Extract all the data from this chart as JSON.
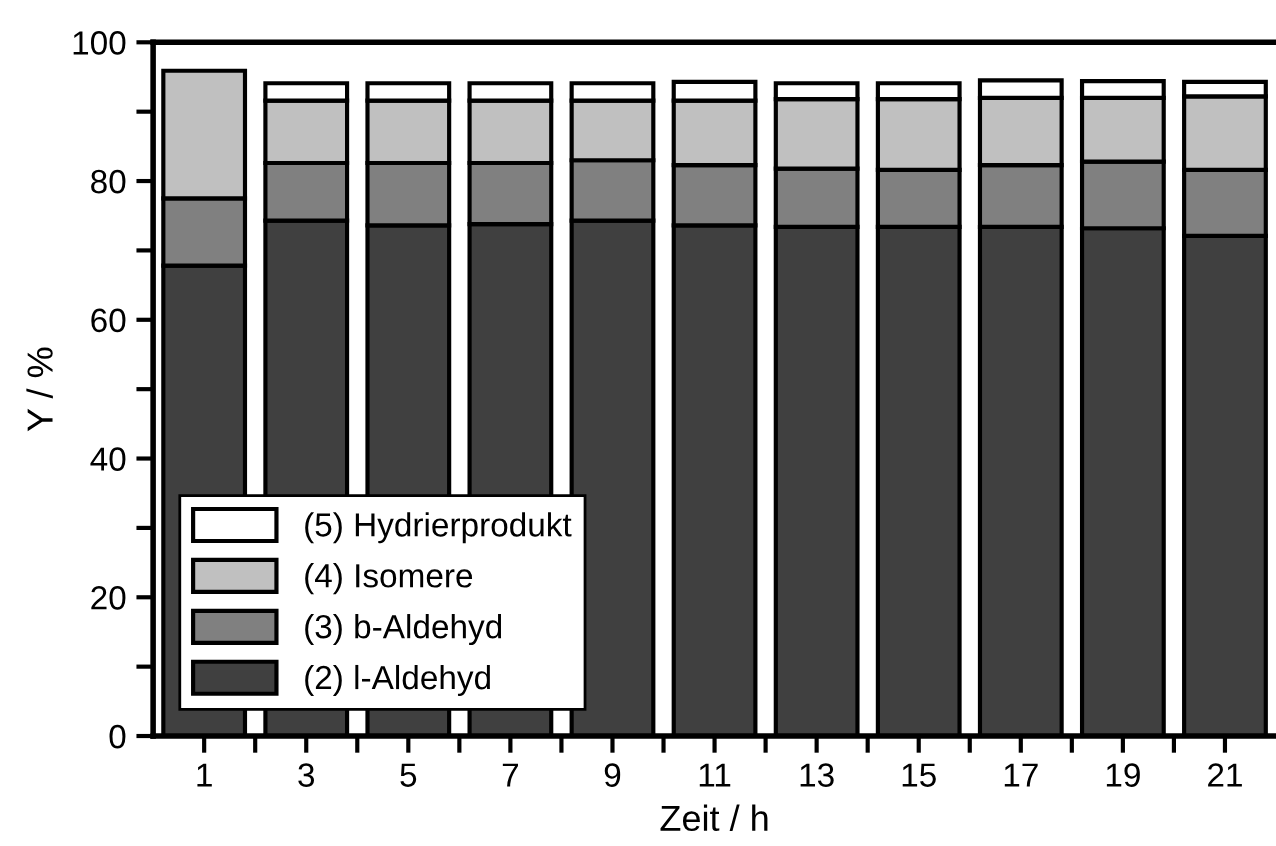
{
  "chart_data": {
    "type": "bar",
    "stacked": true,
    "xlabel": "Zeit / h",
    "ylabel": "Y / %",
    "x": [
      1,
      3,
      5,
      7,
      9,
      11,
      13,
      15,
      17,
      19,
      21
    ],
    "series": [
      {
        "name": "(2) l-Aldehyd",
        "color": "#404040",
        "values": [
          67.8,
          74.3,
          73.6,
          73.8,
          74.3,
          73.6,
          73.4,
          73.4,
          73.4,
          73.2,
          72.1
        ]
      },
      {
        "name": "(3) b-Aldehyd",
        "color": "#808080",
        "values": [
          9.7,
          8.3,
          9.0,
          8.8,
          8.7,
          8.7,
          8.4,
          8.2,
          8.9,
          9.6,
          9.5
        ]
      },
      {
        "name": "(4) Isomere",
        "color": "#c0c0c0",
        "values": [
          18.4,
          9.0,
          9.0,
          9.0,
          8.6,
          9.3,
          10.0,
          10.2,
          9.7,
          9.2,
          10.6
        ]
      },
      {
        "name": "(5) Hydrierprodukt",
        "color": "#ffffff",
        "values": [
          null,
          2.5,
          2.5,
          2.5,
          2.5,
          2.7,
          2.3,
          2.3,
          2.5,
          2.4,
          2.1
        ]
      }
    ],
    "xlim": [
      0,
      22
    ],
    "ylim": [
      0,
      100
    ],
    "xticks": [
      1,
      {
        "value": 2,
        "label": null
      },
      3,
      {
        "value": 4,
        "label": null
      },
      5,
      {
        "value": 6,
        "label": null
      },
      7,
      {
        "value": 8,
        "label": null
      },
      9,
      {
        "value": 10,
        "label": null
      },
      11,
      {
        "value": 12,
        "label": null
      },
      13,
      {
        "value": 14,
        "label": null
      },
      15,
      {
        "value": 16,
        "label": null
      },
      17,
      {
        "value": 18,
        "label": null
      },
      19,
      {
        "value": 20,
        "label": null
      },
      21
    ],
    "yticks": [
      0,
      {
        "value": 10,
        "label": null
      },
      20,
      {
        "value": 30,
        "label": null
      },
      40,
      {
        "value": 50,
        "label": null
      },
      60,
      {
        "value": 70,
        "label": null
      },
      80,
      {
        "value": 90,
        "label": null
      },
      100
    ],
    "legend": "bottom left"
  }
}
